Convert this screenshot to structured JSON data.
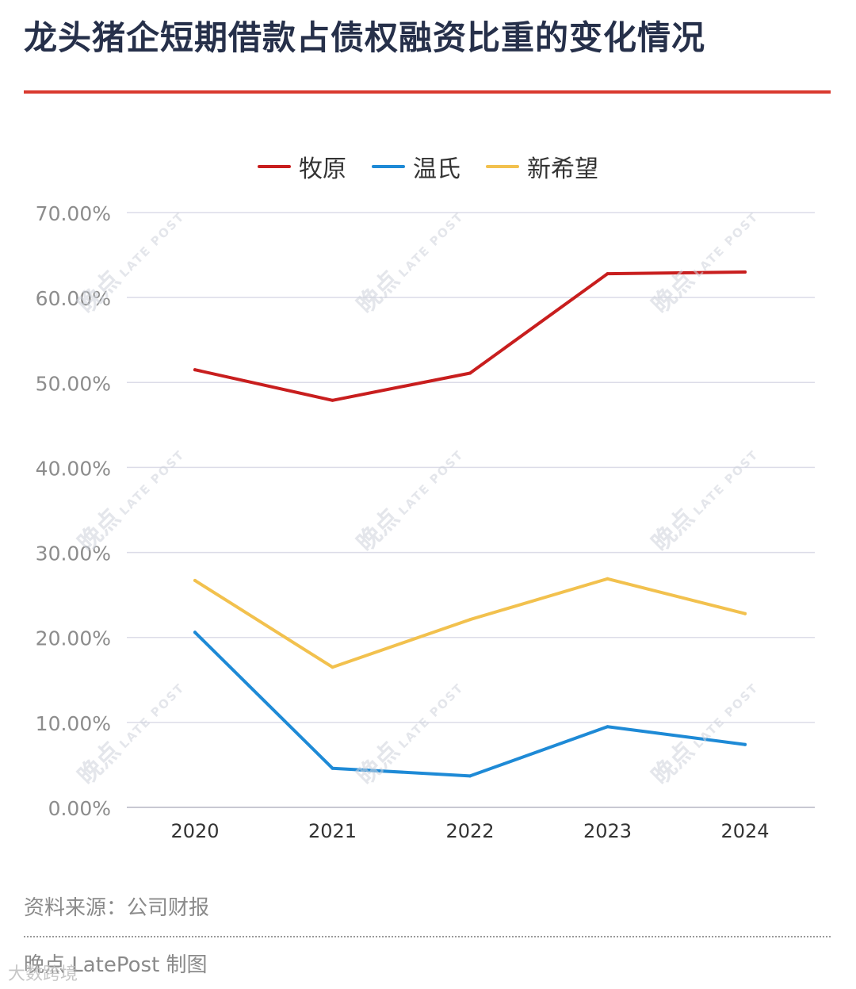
{
  "header": {
    "title": "龙头猪企短期借款占债权融资比重的变化情况"
  },
  "chart_data": {
    "type": "line",
    "title": "龙头猪企短期借款占债权融资比重的变化情况",
    "categories": [
      "2020",
      "2021",
      "2022",
      "2023",
      "2024"
    ],
    "series": [
      {
        "name": "牧原",
        "color": "#c81e1e",
        "values": [
          51.5,
          47.9,
          51.1,
          62.8,
          63.0
        ]
      },
      {
        "name": "温氏",
        "color": "#1e8ad6",
        "values": [
          20.6,
          4.6,
          3.7,
          9.5,
          7.4
        ]
      },
      {
        "name": "新希望",
        "color": "#f2c14e",
        "values": [
          26.7,
          16.5,
          22.1,
          26.9,
          22.8
        ]
      }
    ],
    "ylim": [
      0,
      70
    ],
    "yticks": [
      "0.00%",
      "10.00%",
      "20.00%",
      "30.00%",
      "40.00%",
      "50.00%",
      "60.00%",
      "70.00%"
    ],
    "grid": true,
    "legend": "top-center"
  },
  "footer": {
    "source": "资料来源：公司财报",
    "credit": "晚点 LatePost 制图",
    "corner_watermark": "大数跨境"
  },
  "watermark": {
    "cn": "晚点",
    "en": "LATE POST"
  }
}
